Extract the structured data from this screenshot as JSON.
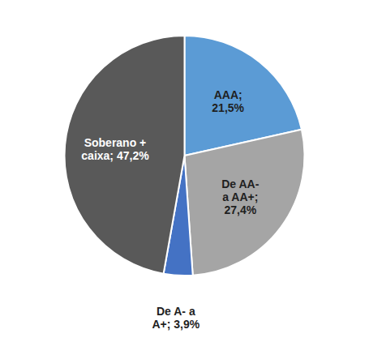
{
  "chart_data": {
    "type": "pie",
    "values": [
      21.5,
      27.4,
      3.9,
      47.2
    ],
    "value_labels": [
      "AAA;\n21,5%",
      "De AA-\na AA+;\n27,4%",
      "De A- a\nA+; 3,9%",
      "Soberano +\ncaixa; 47,2%"
    ],
    "colors": [
      "#5b9bd5",
      "#a5a5a5",
      "#4472c4",
      "#595959"
    ]
  }
}
